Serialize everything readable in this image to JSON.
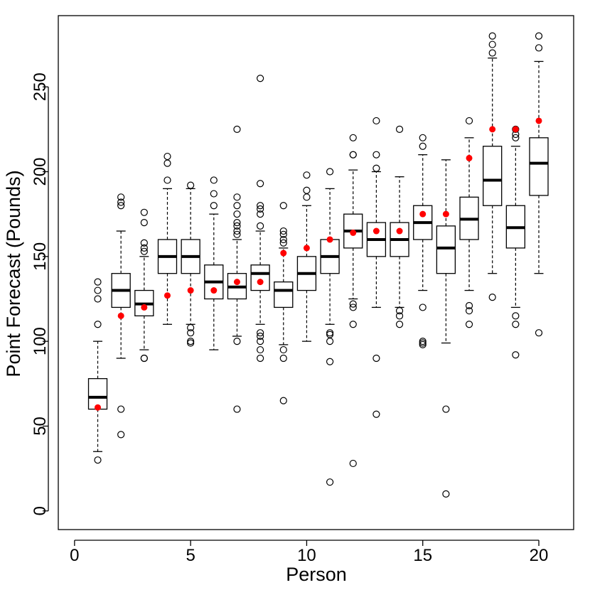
{
  "chart_data": {
    "type": "boxplot",
    "title": "",
    "xlabel": "Person",
    "ylabel": "Point Forecast (Pounds)",
    "xlim": [
      -0.7,
      21.5
    ],
    "ylim": [
      -11,
      292
    ],
    "xticks": [
      0,
      5,
      10,
      15,
      20
    ],
    "yticks": [
      0,
      50,
      100,
      150,
      200,
      250
    ],
    "grid": false,
    "legend": "none",
    "colors": {
      "box": "#000000",
      "median": "#000000",
      "point": "#ff0000"
    },
    "boxes": [
      {
        "x": 1,
        "whisker_low": 35,
        "q1": 60,
        "median": 67,
        "q3": 78,
        "whisker_high": 100,
        "outliers": [
          30,
          110,
          125,
          130,
          135
        ],
        "point": 61
      },
      {
        "x": 2,
        "whisker_low": 90,
        "q1": 120,
        "median": 130,
        "q3": 140,
        "whisker_high": 165,
        "outliers": [
          45,
          60,
          180,
          182,
          185
        ],
        "point": 115
      },
      {
        "x": 3,
        "whisker_low": 95,
        "q1": 115,
        "median": 122,
        "q3": 130,
        "whisker_high": 150,
        "outliers": [
          90,
          90,
          153,
          155,
          158,
          170,
          176
        ],
        "point": 120
      },
      {
        "x": 4,
        "whisker_low": 110,
        "q1": 140,
        "median": 150,
        "q3": 160,
        "whisker_high": 190,
        "outliers": [
          195,
          205,
          209
        ],
        "point": 127
      },
      {
        "x": 5,
        "whisker_low": 110,
        "q1": 140,
        "median": 150,
        "q3": 160,
        "whisker_high": 190,
        "outliers": [
          99,
          100,
          105,
          108,
          192
        ],
        "point": 130
      },
      {
        "x": 6,
        "whisker_low": 95,
        "q1": 125,
        "median": 135,
        "q3": 145,
        "whisker_high": 175,
        "outliers": [
          180,
          187,
          195
        ],
        "point": 130
      },
      {
        "x": 7,
        "whisker_low": 103,
        "q1": 125,
        "median": 132,
        "q3": 140,
        "whisker_high": 160,
        "outliers": [
          60,
          100,
          163,
          165,
          168,
          170,
          175,
          180,
          185,
          225
        ],
        "point": 135
      },
      {
        "x": 8,
        "whisker_low": 110,
        "q1": 130,
        "median": 140,
        "q3": 145,
        "whisker_high": 165,
        "outliers": [
          90,
          95,
          100,
          103,
          105,
          168,
          175,
          178,
          180,
          193,
          255
        ],
        "point": 135
      },
      {
        "x": 9,
        "whisker_low": 98,
        "q1": 120,
        "median": 130,
        "q3": 135,
        "whisker_high": 155,
        "outliers": [
          65,
          90,
          95,
          158,
          160,
          163,
          165,
          180
        ],
        "point": 152
      },
      {
        "x": 10,
        "whisker_low": 100,
        "q1": 130,
        "median": 140,
        "q3": 150,
        "whisker_high": 180,
        "outliers": [
          185,
          189,
          198
        ],
        "point": 155
      },
      {
        "x": 11,
        "whisker_low": 110,
        "q1": 140,
        "median": 150,
        "q3": 160,
        "whisker_high": 190,
        "outliers": [
          17,
          88,
          100,
          104,
          105,
          200
        ],
        "point": 160
      },
      {
        "x": 12,
        "whisker_low": 125,
        "q1": 155,
        "median": 165,
        "q3": 175,
        "whisker_high": 201,
        "outliers": [
          28,
          110,
          120,
          122,
          210,
          210,
          220
        ],
        "point": 164
      },
      {
        "x": 13,
        "whisker_low": 120,
        "q1": 150,
        "median": 160,
        "q3": 170,
        "whisker_high": 200,
        "outliers": [
          57,
          90,
          202,
          210,
          230
        ],
        "point": 165
      },
      {
        "x": 14,
        "whisker_low": 120,
        "q1": 150,
        "median": 160,
        "q3": 170,
        "whisker_high": 197,
        "outliers": [
          110,
          115,
          118,
          225
        ],
        "point": 165
      },
      {
        "x": 15,
        "whisker_low": 130,
        "q1": 160,
        "median": 170,
        "q3": 180,
        "whisker_high": 210,
        "outliers": [
          98,
          99,
          100,
          120,
          215,
          220
        ],
        "point": 175
      },
      {
        "x": 16,
        "whisker_low": 99,
        "q1": 140,
        "median": 155,
        "q3": 168,
        "whisker_high": 207,
        "outliers": [
          10,
          60
        ],
        "point": 175
      },
      {
        "x": 17,
        "whisker_low": 130,
        "q1": 160,
        "median": 172,
        "q3": 185,
        "whisker_high": 220,
        "outliers": [
          110,
          118,
          121,
          230
        ],
        "point": 208
      },
      {
        "x": 18,
        "whisker_low": 140,
        "q1": 180,
        "median": 195,
        "q3": 215,
        "whisker_high": 267,
        "outliers": [
          126,
          270,
          275,
          280
        ],
        "point": 225
      },
      {
        "x": 19,
        "whisker_low": 120,
        "q1": 155,
        "median": 167,
        "q3": 180,
        "whisker_high": 215,
        "outliers": [
          92,
          110,
          115,
          220,
          222,
          225
        ],
        "point": 225
      },
      {
        "x": 20,
        "whisker_low": 140,
        "q1": 186,
        "median": 205,
        "q3": 220,
        "whisker_high": 265,
        "outliers": [
          105,
          273,
          280
        ],
        "point": 230
      }
    ]
  }
}
